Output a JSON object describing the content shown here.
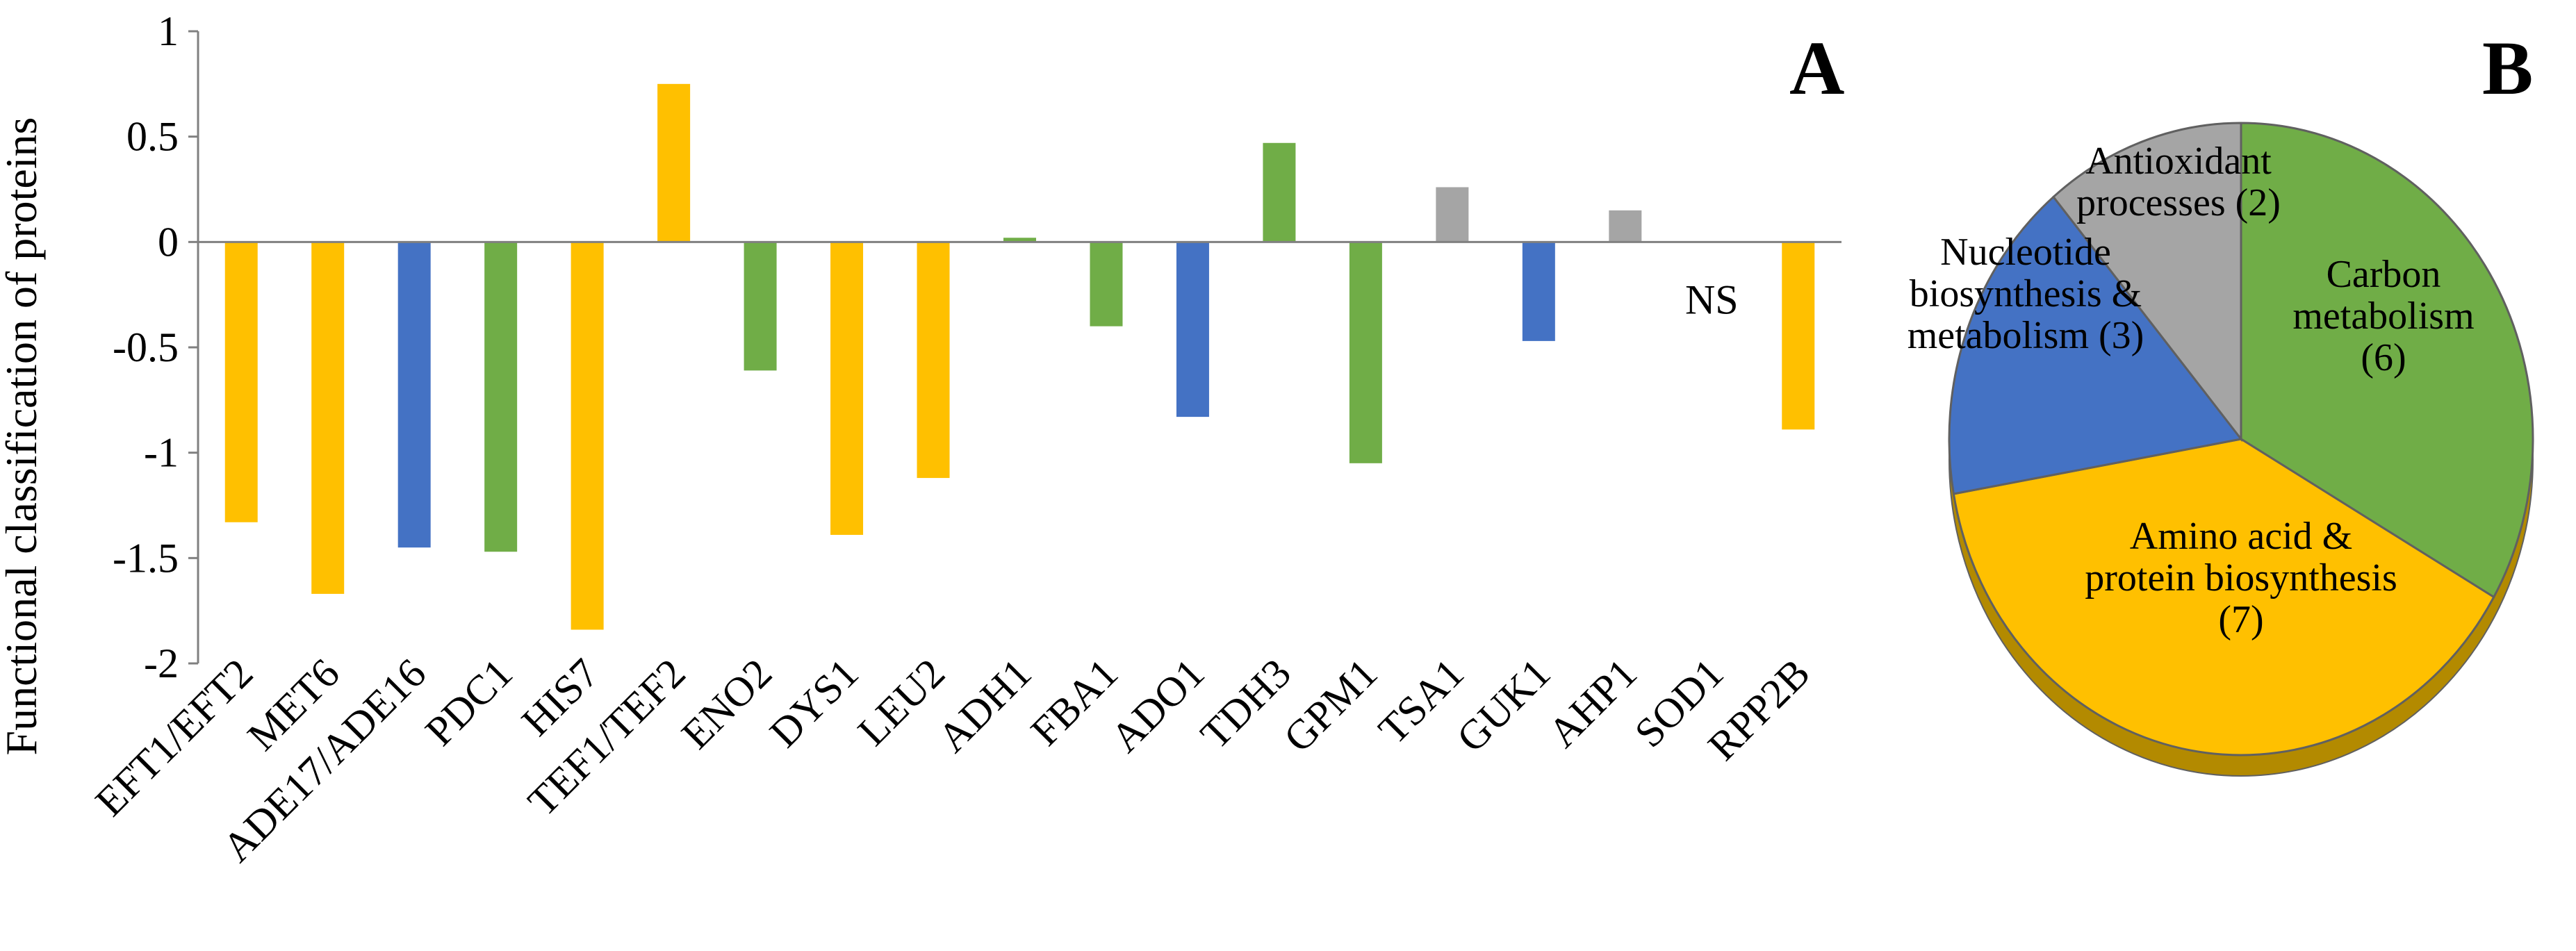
{
  "chart_data": [
    {
      "type": "bar",
      "panel_label": "A",
      "title": "",
      "xlabel": "",
      "ylabel": "Functional classification of proteins",
      "ylim": [
        -2,
        1
      ],
      "yticks": [
        "1",
        "0.5",
        "0",
        "-0.5",
        "-1",
        "-1.5",
        "-2"
      ],
      "yticks_values": [
        1,
        0.5,
        0,
        -0.5,
        -1,
        -1.5,
        -2
      ],
      "annotation": "NS",
      "annotation_category": "SOD1",
      "categories": [
        "EFT1/EFT2",
        "MET6",
        "ADE17/ADE16",
        "PDC1",
        "HIS7",
        "TEF1/TEF2",
        "ENO2",
        "DYS1",
        "LEU2",
        "ADH1",
        "FBA1",
        "ADO1",
        "TDH3",
        "GPM1",
        "TSA1",
        "GUK1",
        "AHP1",
        "SOD1",
        "RPP2B"
      ],
      "values": [
        -1.33,
        -1.67,
        -1.45,
        -1.47,
        -1.84,
        0.75,
        -0.61,
        -1.39,
        -1.12,
        0.02,
        -0.4,
        -0.83,
        0.47,
        -1.05,
        0.26,
        -0.47,
        0.15,
        null,
        -0.89
      ],
      "groups": [
        "amino",
        "amino",
        "nucleotide",
        "carbon",
        "amino",
        "amino",
        "carbon",
        "amino",
        "amino",
        "carbon",
        "carbon",
        "nucleotide",
        "carbon",
        "carbon",
        "antioxidant",
        "nucleotide",
        "antioxidant",
        "antioxidant",
        "amino"
      ]
    },
    {
      "type": "pie",
      "panel_label": "B",
      "slices": [
        {
          "key": "carbon",
          "lines": [
            "Carbon",
            "metabolism",
            "(6)"
          ],
          "value": 6
        },
        {
          "key": "amino",
          "lines": [
            "Amino acid &",
            "protein biosynthesis",
            "(7)"
          ],
          "value": 7
        },
        {
          "key": "nucleotide",
          "lines": [
            "Nucleotide",
            "biosynthesis &",
            "metabolism (3)"
          ],
          "value": 3
        },
        {
          "key": "antioxidant",
          "lines": [
            "Antioxidant",
            "processes (2)"
          ],
          "value": 2
        }
      ]
    }
  ],
  "colors": {
    "amino": "#FFC000",
    "carbon": "#70AD47",
    "nucleotide": "#4472C4",
    "antioxidant": "#A5A5A5",
    "amino_side": "#B38A00",
    "axis": "#808080",
    "pie_border": "#606060"
  }
}
